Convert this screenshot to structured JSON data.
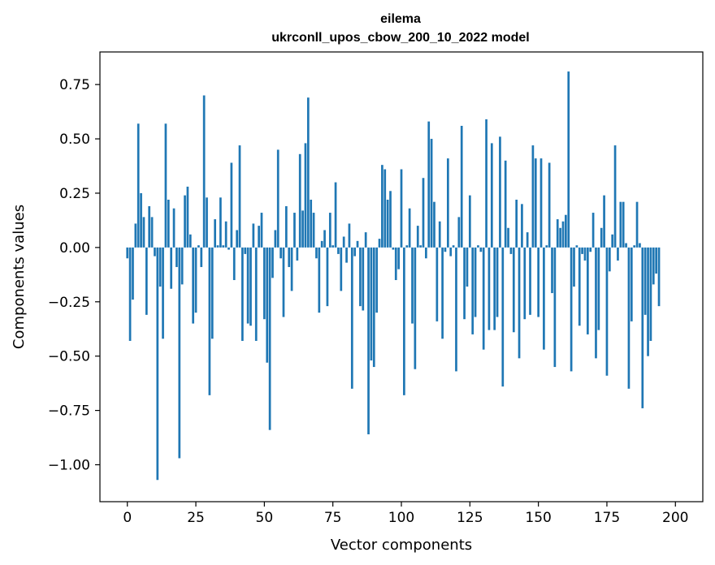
{
  "chart_data": {
    "type": "bar",
    "title": "eilema",
    "subtitle": "ukrconll_upos_cbow_200_10_2022 model",
    "xlabel": "Vector components",
    "ylabel": "Components values",
    "xlim": [
      -10,
      210
    ],
    "ylim": [
      -1.17,
      0.9
    ],
    "xticks": [
      0,
      25,
      50,
      75,
      100,
      125,
      150,
      175,
      200
    ],
    "xtick_labels": [
      "0",
      "25",
      "50",
      "75",
      "100",
      "125",
      "150",
      "175",
      "200"
    ],
    "yticks": [
      -1.0,
      -0.75,
      -0.5,
      -0.25,
      0.0,
      0.25,
      0.5,
      0.75
    ],
    "ytick_labels": [
      "−1.00",
      "−0.75",
      "−0.50",
      "−0.25",
      "0.00",
      "0.25",
      "0.50",
      "0.75"
    ],
    "bar_color": "#1f77b4",
    "grid": false,
    "values": [
      -0.05,
      -0.43,
      -0.24,
      0.11,
      0.57,
      0.25,
      0.14,
      -0.31,
      0.19,
      0.14,
      -0.04,
      -1.07,
      -0.18,
      -0.42,
      0.57,
      0.22,
      -0.19,
      0.18,
      -0.09,
      -0.97,
      -0.17,
      0.24,
      0.28,
      0.06,
      -0.35,
      -0.3,
      0.01,
      -0.09,
      0.7,
      0.23,
      -0.68,
      -0.42,
      0.13,
      0.01,
      0.23,
      0.01,
      0.12,
      -0.01,
      0.39,
      -0.15,
      0.08,
      0.47,
      -0.43,
      -0.03,
      -0.35,
      -0.36,
      0.11,
      -0.43,
      0.1,
      0.16,
      -0.33,
      -0.53,
      -0.84,
      -0.14,
      0.08,
      0.45,
      -0.05,
      -0.32,
      0.19,
      -0.09,
      -0.2,
      0.16,
      -0.06,
      0.43,
      0.17,
      0.48,
      0.69,
      0.22,
      0.16,
      -0.05,
      -0.3,
      0.03,
      0.08,
      -0.27,
      0.16,
      0.01,
      0.3,
      -0.03,
      -0.2,
      0.05,
      -0.07,
      0.11,
      -0.65,
      -0.04,
      0.03,
      -0.27,
      -0.29,
      0.07,
      -0.86,
      -0.52,
      -0.55,
      -0.3,
      0.04,
      0.38,
      0.36,
      0.22,
      0.26,
      -0.01,
      -0.15,
      -0.1,
      0.36,
      -0.68,
      0.01,
      0.18,
      -0.35,
      -0.56,
      0.1,
      0.01,
      0.32,
      -0.05,
      0.58,
      0.5,
      0.21,
      -0.34,
      0.12,
      -0.42,
      -0.02,
      0.41,
      -0.04,
      0.01,
      -0.57,
      0.14,
      0.56,
      -0.33,
      -0.18,
      0.24,
      -0.4,
      -0.32,
      0.01,
      -0.02,
      -0.47,
      0.59,
      -0.38,
      0.48,
      -0.38,
      -0.32,
      0.51,
      -0.64,
      0.4,
      0.09,
      -0.03,
      -0.39,
      0.22,
      -0.51,
      0.2,
      -0.33,
      0.07,
      -0.31,
      0.47,
      0.41,
      -0.32,
      0.41,
      -0.47,
      0.01,
      0.39,
      -0.21,
      -0.55,
      0.13,
      0.09,
      0.12,
      0.15,
      0.81,
      -0.57,
      -0.18,
      0.01,
      -0.36,
      -0.03,
      -0.06,
      -0.4,
      -0.02,
      0.16,
      -0.51,
      -0.38,
      0.09,
      0.24,
      -0.59,
      -0.11,
      0.06,
      0.47,
      -0.06,
      0.21,
      0.21,
      0.02,
      -0.65,
      -0.34,
      0.01,
      0.21,
      0.02,
      -0.74,
      -0.31,
      -0.5,
      -0.43,
      -0.17,
      -0.12,
      -0.27
    ]
  }
}
